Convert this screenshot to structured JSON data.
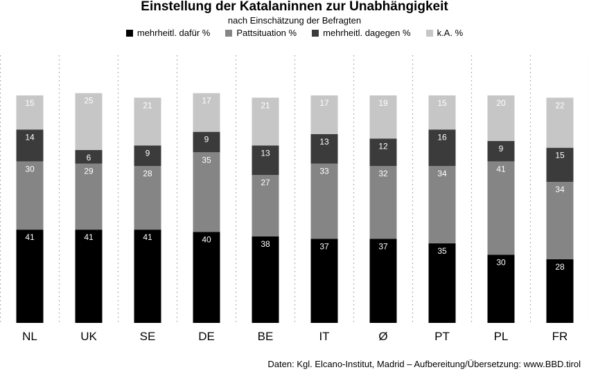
{
  "chart_data": {
    "type": "bar",
    "stacked": true,
    "title": "Einstellung der Katalaninnen zur Unabhängigkeit",
    "subtitle": "nach Einschätzung der Befragten",
    "categories": [
      "NL",
      "UK",
      "SE",
      "DE",
      "BE",
      "IT",
      "Ø",
      "PT",
      "PL",
      "FR"
    ],
    "series": [
      {
        "name": "mehrheitl. dafür %",
        "color": "#000000",
        "label_color": "#ffffff",
        "values": [
          41,
          41,
          41,
          40,
          38,
          37,
          37,
          35,
          30,
          28
        ]
      },
      {
        "name": "Pattsituation %",
        "color": "#858585",
        "label_color": "#ffffff",
        "values": [
          30,
          29,
          28,
          35,
          27,
          33,
          32,
          34,
          41,
          34
        ]
      },
      {
        "name": "mehrheitl. dagegen %",
        "color": "#3b3b3b",
        "label_color": "#ffffff",
        "values": [
          14,
          6,
          9,
          9,
          13,
          13,
          12,
          16,
          9,
          15
        ]
      },
      {
        "name": "k.A. %",
        "color": "#c6c6c6",
        "label_color": "#ffffff",
        "values": [
          15,
          25,
          21,
          17,
          21,
          17,
          19,
          15,
          20,
          22
        ]
      }
    ],
    "ylim": [
      0,
      100
    ],
    "grid": false,
    "legend_position": "top",
    "xlabel": "",
    "ylabel": ""
  },
  "source": "Daten: Kgl. Elcano-Institut, Madrid – Aufbereitung/Übersetzung: www.BBD.tirol"
}
